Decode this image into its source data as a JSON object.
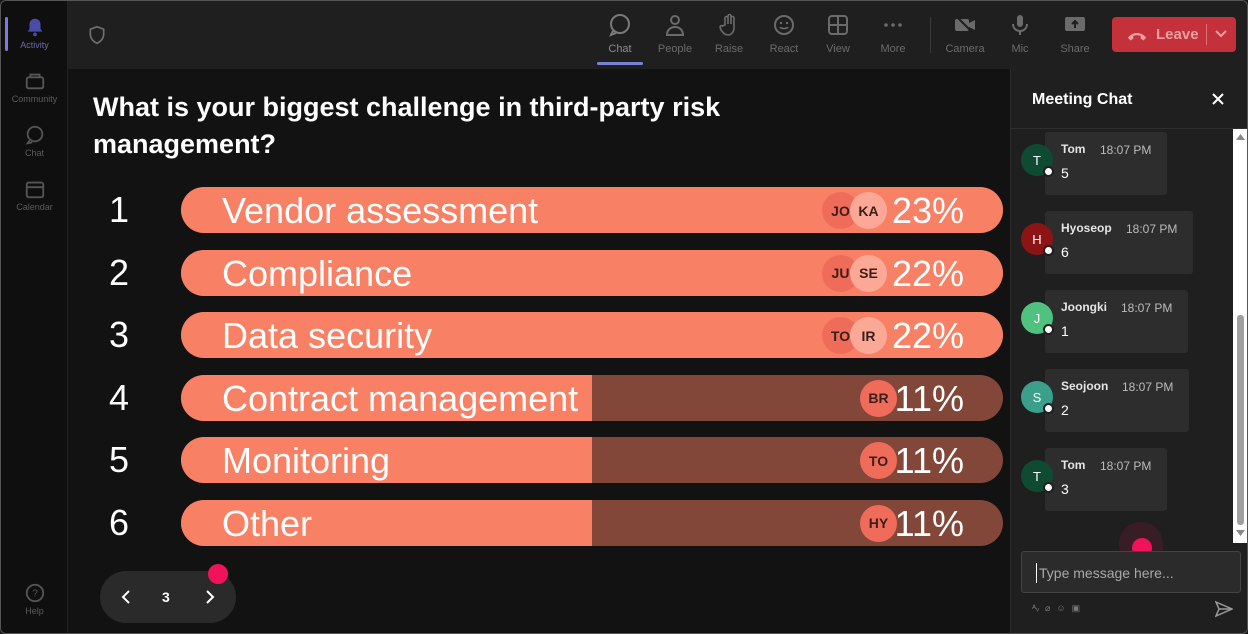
{
  "rail": {
    "items": [
      {
        "label": "Activity",
        "icon": "bell-icon"
      },
      {
        "label": "Community",
        "icon": "community-icon"
      },
      {
        "label": "Chat",
        "icon": "chat-icon"
      },
      {
        "label": "Calendar",
        "icon": "calendar-icon"
      },
      {
        "label": "Help",
        "icon": "help-icon"
      }
    ]
  },
  "toolbar": {
    "buttons": [
      {
        "label": "Chat",
        "icon": "chat-icon"
      },
      {
        "label": "People",
        "icon": "people-icon"
      },
      {
        "label": "Raise",
        "icon": "raise-hand-icon"
      },
      {
        "label": "React",
        "icon": "react-icon"
      },
      {
        "label": "View",
        "icon": "view-grid-icon"
      },
      {
        "label": "More",
        "icon": "more-icon"
      },
      {
        "label": "Camera",
        "icon": "camera-off-icon"
      },
      {
        "label": "Mic",
        "icon": "mic-icon"
      },
      {
        "label": "Share",
        "icon": "share-icon"
      }
    ],
    "leave_label": "Leave"
  },
  "poll": {
    "question": "What is your biggest challenge in third-party risk management?",
    "rows": [
      {
        "rank": "1",
        "label": "Vendor assessment",
        "percent": "23%",
        "fill": 1.0,
        "avatars": [
          "JO",
          "KA"
        ]
      },
      {
        "rank": "2",
        "label": "Compliance",
        "percent": "22%",
        "fill": 1.0,
        "avatars": [
          "JU",
          "SE"
        ]
      },
      {
        "rank": "3",
        "label": "Data security",
        "percent": "22%",
        "fill": 1.0,
        "avatars": [
          "TO",
          "IR"
        ]
      },
      {
        "rank": "4",
        "label": "Contract management",
        "percent": "11%",
        "fill": 0.5,
        "avatars": [
          "BR"
        ]
      },
      {
        "rank": "5",
        "label": "Monitoring",
        "percent": "11%",
        "fill": 0.5,
        "avatars": [
          "TO"
        ]
      },
      {
        "rank": "6",
        "label": "Other",
        "percent": "11%",
        "fill": 0.5,
        "avatars": [
          "HY"
        ]
      }
    ],
    "page": "3"
  },
  "chat": {
    "title": "Meeting Chat",
    "messages": [
      {
        "initial": "T",
        "name": "Tom",
        "time": "18:07 PM",
        "text": "5",
        "color": "#0f4a33"
      },
      {
        "initial": "H",
        "name": "Hyoseop",
        "time": "18:07 PM",
        "text": "6",
        "color": "#8c1414"
      },
      {
        "initial": "J",
        "name": "Joongki",
        "time": "18:07 PM",
        "text": "1",
        "color": "#4ec27e"
      },
      {
        "initial": "S",
        "name": "Seojoon",
        "time": "18:07 PM",
        "text": "2",
        "color": "#3aa08c"
      },
      {
        "initial": "T",
        "name": "Tom",
        "time": "18:07 PM",
        "text": "3",
        "color": "#0f4a33"
      }
    ],
    "placeholder": "Type message here...",
    "tools": [
      "Ay",
      "attach",
      "emoji",
      "gif"
    ]
  },
  "colors": {
    "bar_fill": "#f88064",
    "bar_track": "#83473a",
    "leave": "#c4313b",
    "indicator": "#f0135a"
  }
}
